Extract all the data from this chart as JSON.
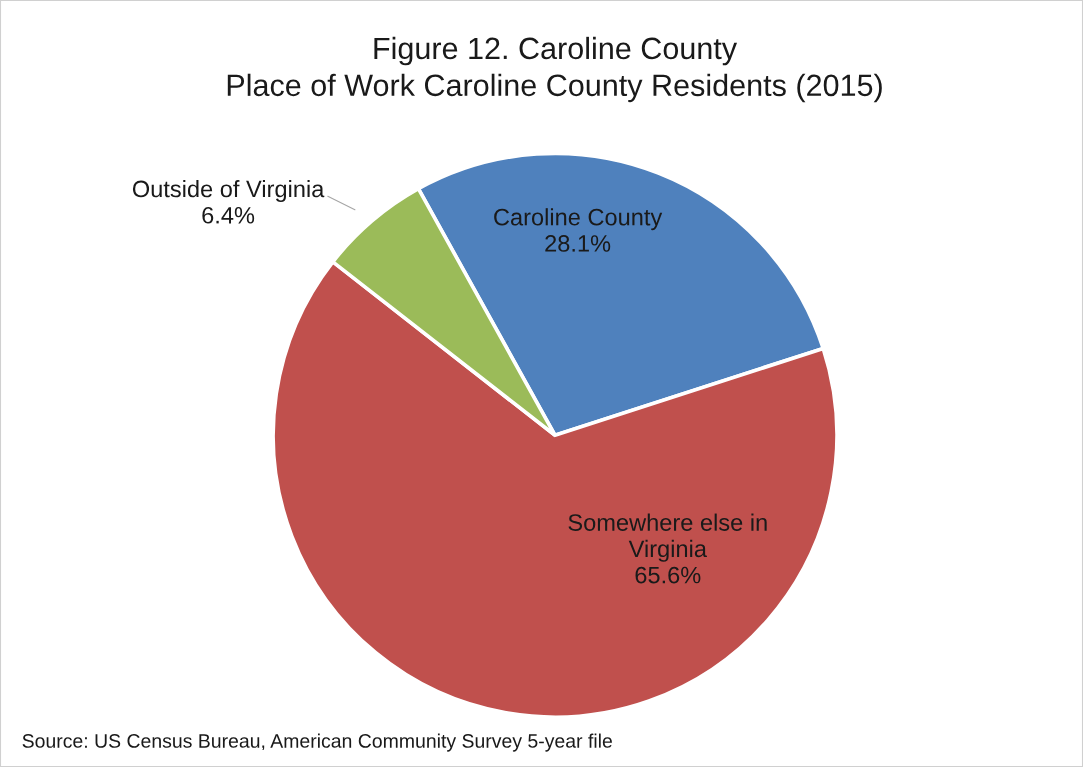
{
  "chart_data": {
    "type": "pie",
    "title": "Figure 12. Caroline County\nPlace of Work Caroline County Residents (2015)",
    "categories": [
      "Caroline County",
      "Somewhere else in Virginia",
      "Outside of Virginia"
    ],
    "values": [
      28.1,
      65.6,
      6.4
    ],
    "value_labels": [
      "28.1%",
      "65.6%",
      "6.4%"
    ],
    "colors": [
      "#4f81bd",
      "#c0504d",
      "#9bbb59"
    ],
    "annotations": [
      "Source: US Census Bureau, American Community Survey 5-year file"
    ]
  }
}
